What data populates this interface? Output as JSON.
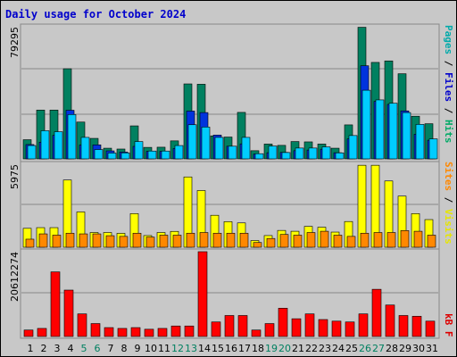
{
  "title": "Daily usage for October 2024",
  "panels": {
    "top": {
      "max_label": "79295",
      "legend": [
        {
          "text": "Pages",
          "color": "#00aaaa"
        },
        {
          "text": " / ",
          "color": "#000000"
        },
        {
          "text": "Files",
          "color": "#0000cc"
        },
        {
          "text": " / ",
          "color": "#000000"
        },
        {
          "text": "Hits",
          "color": "#00aa66"
        }
      ]
    },
    "middle": {
      "max_label": "5975",
      "legend": [
        {
          "text": "Sites",
          "color": "#ff8800"
        },
        {
          "text": " / ",
          "color": "#000000"
        },
        {
          "text": "Visits",
          "color": "#e6e600"
        }
      ]
    },
    "bottom": {
      "max_label": "20612274",
      "legend": [
        {
          "text": "kB F",
          "color": "#dd0000"
        }
      ]
    }
  },
  "colors": {
    "hits": "#008060",
    "files": "#0033dd",
    "pages": "#00ccff",
    "visits": "#ffff00",
    "sites": "#ff8800",
    "kbytes": "#ff0000",
    "weekday_label": "#000000",
    "weekend_label": "#008060",
    "background": "#c8c8c8",
    "grid": "#888888"
  },
  "chart_data": [
    {
      "type": "bar",
      "name": "hits-files-pages",
      "categories": [
        "1",
        "2",
        "3",
        "4",
        "5",
        "6",
        "7",
        "8",
        "9",
        "10",
        "11",
        "12",
        "13",
        "14",
        "15",
        "16",
        "17",
        "18",
        "19",
        "20",
        "21",
        "22",
        "23",
        "24",
        "25",
        "26",
        "27",
        "28",
        "29",
        "30",
        "31"
      ],
      "weekend": [
        false,
        false,
        false,
        false,
        true,
        true,
        false,
        false,
        false,
        false,
        false,
        true,
        true,
        false,
        false,
        false,
        false,
        false,
        true,
        true,
        false,
        false,
        false,
        false,
        false,
        true,
        true,
        false,
        false,
        false,
        false
      ],
      "ylim": [
        0,
        79295
      ],
      "series": [
        {
          "name": "Hits",
          "color_key": "hits",
          "values": [
            11500,
            29300,
            29300,
            54100,
            22100,
            12300,
            6400,
            5900,
            19800,
            6900,
            7000,
            10800,
            45000,
            44800,
            13800,
            13100,
            27900,
            4900,
            8900,
            8100,
            10400,
            10200,
            8900,
            6400,
            20400,
            79000,
            57900,
            58800,
            51100,
            25600,
            21100
          ]
        },
        {
          "name": "Files",
          "color_key": "files",
          "values": [
            8600,
            10000,
            14100,
            29200,
            8300,
            8400,
            4800,
            4100,
            7500,
            4500,
            4500,
            6200,
            28700,
            27800,
            14300,
            7600,
            9000,
            2900,
            3700,
            3900,
            4900,
            5300,
            5800,
            3700,
            12000,
            55900,
            34500,
            32700,
            28800,
            14800,
            11200
          ]
        },
        {
          "name": "Pages",
          "color_key": "pages",
          "values": [
            8000,
            16900,
            16300,
            26600,
            12900,
            5600,
            3500,
            3600,
            10400,
            4700,
            4700,
            8000,
            20500,
            19100,
            12900,
            7600,
            12900,
            3100,
            7700,
            3800,
            6500,
            6500,
            7200,
            3600,
            14000,
            41200,
            35400,
            33400,
            27800,
            20700,
            12000
          ]
        }
      ]
    },
    {
      "type": "bar",
      "name": "visits-sites",
      "categories": [
        "1",
        "2",
        "3",
        "4",
        "5",
        "6",
        "7",
        "8",
        "9",
        "10",
        "11",
        "12",
        "13",
        "14",
        "15",
        "16",
        "17",
        "18",
        "19",
        "20",
        "21",
        "22",
        "23",
        "24",
        "25",
        "26",
        "27",
        "28",
        "29",
        "30",
        "31"
      ],
      "ylim": [
        0,
        5975
      ],
      "series": [
        {
          "name": "Visits",
          "color_key": "visits",
          "values": [
            1360,
            1410,
            1410,
            4840,
            2540,
            1060,
            1060,
            1000,
            2420,
            840,
            1060,
            1140,
            5060,
            4080,
            2300,
            1840,
            1750,
            480,
            840,
            1210,
            1150,
            1500,
            1440,
            1090,
            1850,
            5900,
            5900,
            4770,
            3680,
            2420,
            1990
          ]
        },
        {
          "name": "Sites",
          "color_key": "sites",
          "values": [
            580,
            960,
            870,
            1010,
            960,
            960,
            830,
            780,
            1010,
            730,
            870,
            870,
            1010,
            1060,
            1010,
            1010,
            1010,
            340,
            630,
            920,
            870,
            1060,
            1150,
            870,
            780,
            1010,
            1060,
            1060,
            1200,
            1150,
            870
          ]
        }
      ]
    },
    {
      "type": "bar",
      "name": "kbytes",
      "categories": [
        "1",
        "2",
        "3",
        "4",
        "5",
        "6",
        "7",
        "8",
        "9",
        "10",
        "11",
        "12",
        "13",
        "14",
        "15",
        "16",
        "17",
        "18",
        "19",
        "20",
        "21",
        "22",
        "23",
        "24",
        "25",
        "26",
        "27",
        "28",
        "29",
        "30",
        "31"
      ],
      "ylim": [
        0,
        20612274
      ],
      "series": [
        {
          "name": "kB F",
          "color_key": "kbytes",
          "values": [
            1570000,
            1960000,
            15700000,
            11280000,
            5490000,
            3140000,
            2160000,
            1960000,
            2160000,
            1760000,
            1960000,
            2550000,
            2550000,
            20612274,
            3530000,
            5100000,
            5100000,
            1570000,
            3140000,
            6870000,
            4310000,
            5490000,
            4120000,
            3730000,
            3530000,
            5490000,
            11470000,
            7650000,
            5100000,
            4910000,
            3730000
          ]
        }
      ]
    }
  ]
}
